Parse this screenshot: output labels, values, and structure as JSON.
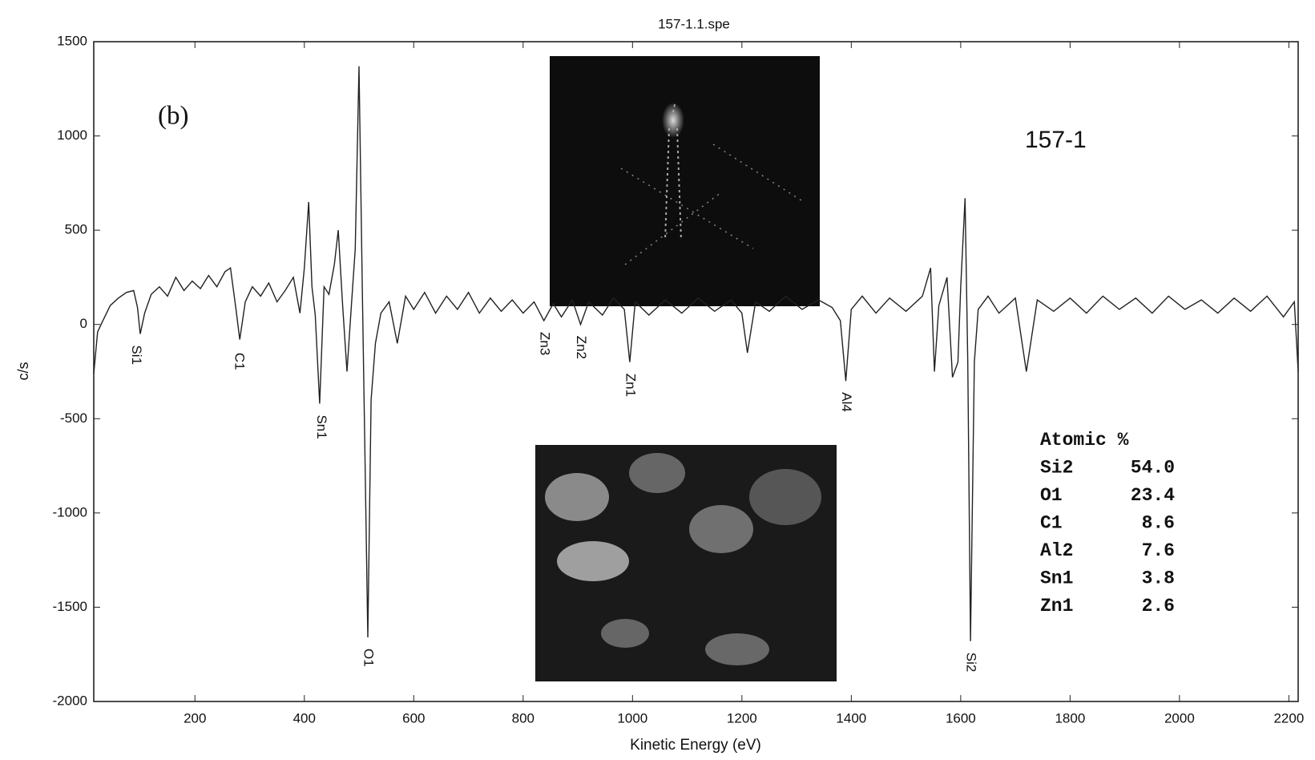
{
  "chart_data": {
    "type": "line",
    "title": "157-1.1.spe",
    "panel_label": "(b)",
    "sample_label": "157-1",
    "x_label": "Kinetic Energy (eV)",
    "y_label": "c/s",
    "color": "#222222",
    "xlim": [
      15,
      2217
    ],
    "ylim": [
      -2000,
      1500
    ],
    "xticks": [
      200,
      400,
      600,
      800,
      1000,
      1200,
      1400,
      1600,
      1800,
      2000,
      2200
    ],
    "yticks": [
      -2000,
      -1500,
      -1000,
      -500,
      0,
      500,
      1000,
      1500
    ],
    "x": [
      15,
      22,
      30,
      45,
      60,
      75,
      88,
      95,
      100,
      108,
      120,
      135,
      150,
      165,
      180,
      195,
      210,
      225,
      240,
      255,
      265,
      275,
      282,
      292,
      305,
      320,
      335,
      350,
      365,
      380,
      392,
      400,
      408,
      414,
      420,
      428,
      436,
      445,
      455,
      462,
      470,
      478,
      486,
      493,
      500,
      506,
      512,
      516,
      522,
      530,
      540,
      555,
      570,
      585,
      600,
      620,
      640,
      660,
      680,
      700,
      720,
      740,
      760,
      780,
      800,
      820,
      838,
      855,
      870,
      890,
      905,
      920,
      945,
      965,
      985,
      995,
      1005,
      1030,
      1060,
      1090,
      1120,
      1150,
      1180,
      1200,
      1210,
      1225,
      1250,
      1280,
      1310,
      1340,
      1365,
      1380,
      1390,
      1400,
      1420,
      1445,
      1470,
      1500,
      1530,
      1545,
      1552,
      1560,
      1575,
      1585,
      1595,
      1600,
      1608,
      1613,
      1618,
      1625,
      1632,
      1650,
      1670,
      1700,
      1720,
      1740,
      1770,
      1800,
      1830,
      1860,
      1890,
      1920,
      1950,
      1980,
      2010,
      2040,
      2070,
      2100,
      2130,
      2160,
      2190,
      2210,
      2217
    ],
    "values": [
      -260,
      -40,
      10,
      100,
      140,
      170,
      180,
      90,
      -50,
      60,
      160,
      200,
      150,
      250,
      180,
      230,
      190,
      260,
      200,
      280,
      300,
      80,
      -80,
      120,
      200,
      150,
      220,
      120,
      180,
      250,
      60,
      300,
      650,
      200,
      50,
      -420,
      200,
      160,
      320,
      500,
      100,
      -250,
      100,
      400,
      1370,
      200,
      -900,
      -1660,
      -400,
      -100,
      60,
      120,
      -100,
      150,
      80,
      170,
      60,
      150,
      80,
      170,
      60,
      140,
      70,
      130,
      60,
      120,
      20,
      110,
      40,
      130,
      0,
      120,
      50,
      140,
      80,
      -200,
      120,
      50,
      130,
      60,
      140,
      70,
      130,
      60,
      -150,
      120,
      70,
      150,
      80,
      130,
      90,
      20,
      -300,
      80,
      150,
      60,
      140,
      70,
      150,
      300,
      -250,
      100,
      250,
      -280,
      -200,
      200,
      670,
      -200,
      -1680,
      -200,
      80,
      150,
      60,
      140,
      -250,
      130,
      70,
      140,
      60,
      150,
      80,
      140,
      60,
      150,
      80,
      130,
      60,
      140,
      70,
      150,
      40,
      120,
      -250
    ],
    "annotations": [
      {
        "text": "Si1",
        "x": 92,
        "y": -50
      },
      {
        "text": "C1",
        "x": 280,
        "y": -90
      },
      {
        "text": "Sn1",
        "x": 430,
        "y": -420
      },
      {
        "text": "O1",
        "x": 516,
        "y": -1660
      },
      {
        "text": "Zn3",
        "x": 838,
        "y": 20
      },
      {
        "text": "Zn2",
        "x": 905,
        "y": 0
      },
      {
        "text": "Zn1",
        "x": 995,
        "y": -200
      },
      {
        "text": "Al4",
        "x": 1390,
        "y": -300
      },
      {
        "text": "Si2",
        "x": 1618,
        "y": -1680
      }
    ],
    "composition": {
      "header": "Atomic %",
      "rows": [
        [
          "Si2",
          "54.0"
        ],
        [
          "O1",
          "23.4"
        ],
        [
          "C1",
          "8.6"
        ],
        [
          "Al2",
          "7.6"
        ],
        [
          "Sn1",
          "3.8"
        ],
        [
          "Zn1",
          "2.6"
        ]
      ]
    }
  }
}
